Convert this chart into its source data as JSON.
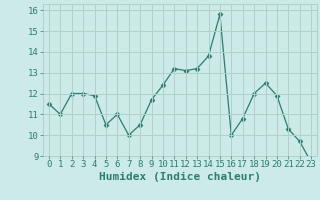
{
  "x": [
    0,
    1,
    2,
    3,
    4,
    5,
    6,
    7,
    8,
    9,
    10,
    11,
    12,
    13,
    14,
    15,
    16,
    17,
    18,
    19,
    20,
    21,
    22,
    23
  ],
  "y": [
    11.5,
    11.0,
    12.0,
    12.0,
    11.9,
    10.5,
    11.0,
    10.0,
    10.5,
    11.7,
    12.4,
    13.2,
    13.1,
    13.2,
    13.8,
    15.8,
    10.0,
    10.8,
    12.0,
    12.5,
    11.9,
    10.3,
    9.7,
    8.7
  ],
  "xlabel": "Humidex (Indice chaleur)",
  "xlim": [
    -0.5,
    23.5
  ],
  "ylim": [
    9,
    16.3
  ],
  "yticks": [
    9,
    10,
    11,
    12,
    13,
    14,
    15,
    16
  ],
  "xticks": [
    0,
    1,
    2,
    3,
    4,
    5,
    6,
    7,
    8,
    9,
    10,
    11,
    12,
    13,
    14,
    15,
    16,
    17,
    18,
    19,
    20,
    21,
    22,
    23
  ],
  "line_color": "#2e7d6e",
  "marker": "D",
  "marker_size": 2.5,
  "linewidth": 0.9,
  "bg_color": "#cceae7",
  "grid_color": "#b0d0cc",
  "tick_label_color": "#2e7d6e",
  "xlabel_color": "#2e7d6e",
  "xlabel_fontsize": 8,
  "tick_fontsize": 6.5
}
